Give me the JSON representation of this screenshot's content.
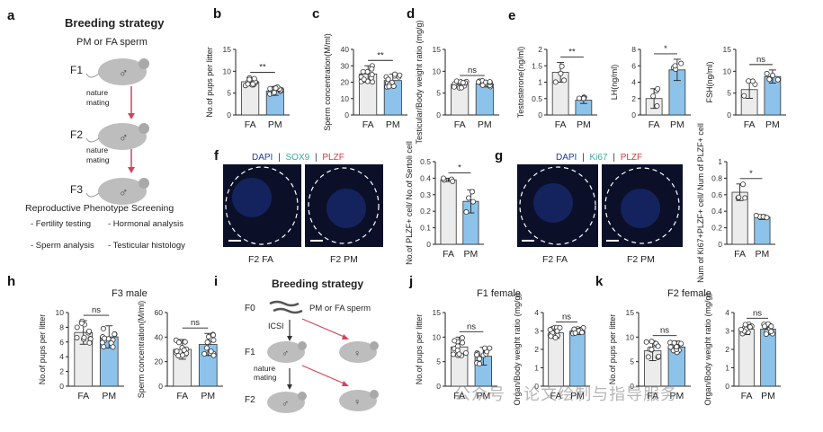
{
  "colors": {
    "fa_bar": "#ececec",
    "pm_bar": "#8dc3ea",
    "pm_dark": "#4b92cf",
    "arrow": "#d1455b",
    "mouse": "#bdbdbd",
    "dapi": "#1f3a9e",
    "sox9": "#3aa99f",
    "ki67": "#3aa99f",
    "plzf": "#d23b3b",
    "tissue_bg": "#0b1028"
  },
  "panel_a": {
    "letter": "a",
    "title": "Breeding strategy",
    "subtitle": "PM or FA sperm",
    "generations": [
      "F1",
      "F2",
      "F3"
    ],
    "arrow_label_1": "nature",
    "arrow_label_2": "mating",
    "screen_title": "Reproductive Phenotype Screening",
    "items": [
      "- Fertility testing",
      "- Hormonal analysis",
      "- Sperm analysis",
      "- Testicular histology"
    ],
    "mouse_symbol": "♂"
  },
  "panel_i": {
    "letter": "i",
    "title": "Breeding strategy",
    "gens": [
      "F0",
      "F1",
      "F2"
    ],
    "sperm_label": "PM or FA sperm",
    "icsi_label": "ICSI",
    "mating_1": "nature",
    "mating_2": "mating",
    "female_symbol": "♀",
    "male_symbol": "♂"
  },
  "panel_f": {
    "letter": "f",
    "stain_1": "DAPI",
    "stain_2": "SOX9",
    "stain_3": "PLZF",
    "sep": "|",
    "img_labels": [
      "F2 FA",
      "F2 PM"
    ]
  },
  "panel_g": {
    "letter": "g",
    "stain_1": "DAPI",
    "stain_2": "Ki67",
    "stain_3": "PLZF",
    "sep": "|",
    "img_labels": [
      "F2 FA",
      "F2 PM"
    ]
  },
  "extra_labels": {
    "e": "e",
    "h": "h",
    "j": "j",
    "k": "k",
    "h_title": "F3 male",
    "j_title": "F1 female",
    "k_title": "F2 female"
  },
  "watermark": "公众号 · 论文绘制与指导服务",
  "chart_data": [
    {
      "id": "b",
      "letter": "b",
      "type": "bar",
      "categories": [
        "FA",
        "PM"
      ],
      "ylabel": "No.of pups per litter",
      "ylim": [
        0,
        15
      ],
      "yticks": [
        0,
        5,
        10,
        15
      ],
      "values": [
        7.6,
        5.5
      ],
      "sig": "**",
      "err": [
        0.9,
        1.0
      ]
    },
    {
      "id": "c",
      "letter": "c",
      "type": "bar",
      "categories": [
        "FA",
        "PM"
      ],
      "ylabel": "Sperm concentration(M/ml)",
      "ylim": [
        0,
        40
      ],
      "yticks": [
        0,
        10,
        20,
        30,
        40
      ],
      "values": [
        25,
        21
      ],
      "sig": "**",
      "err": [
        5,
        4
      ]
    },
    {
      "id": "d",
      "letter": "d",
      "type": "bar",
      "categories": [
        "FA",
        "PM"
      ],
      "ylabel": "Testicular/Body weight ratio (mg/g)",
      "ylim": [
        0,
        15
      ],
      "yticks": [
        0,
        5,
        10,
        15
      ],
      "values": [
        7.0,
        7.1
      ],
      "sig": "ns",
      "err": [
        0.8,
        0.7
      ]
    },
    {
      "id": "e1",
      "letter": "e",
      "type": "bar",
      "categories": [
        "FA",
        "PM"
      ],
      "ylabel": "Testosterone(ng/ml)",
      "ylim": [
        0,
        2.0
      ],
      "yticks": [
        0,
        0.5,
        1.0,
        1.5,
        2.0
      ],
      "values": [
        1.3,
        0.45
      ],
      "sig": "**",
      "err": [
        0.3,
        0.1
      ]
    },
    {
      "id": "e2",
      "type": "bar",
      "categories": [
        "FA",
        "PM"
      ],
      "ylabel": "LH(ng/ml)",
      "ylim": [
        0,
        8
      ],
      "yticks": [
        0,
        2,
        4,
        6,
        8
      ],
      "values": [
        2.0,
        5.5
      ],
      "sig": "*",
      "err": [
        1.2,
        1.3
      ]
    },
    {
      "id": "e3",
      "type": "bar",
      "categories": [
        "FA",
        "PM"
      ],
      "ylabel": "FSH(ng/ml)",
      "ylim": [
        0,
        15
      ],
      "yticks": [
        0,
        5,
        10,
        15
      ],
      "values": [
        5.8,
        8.8
      ],
      "sig": "ns",
      "err": [
        2.0,
        1.5
      ]
    },
    {
      "id": "f",
      "type": "bar",
      "categories": [
        "FA",
        "PM"
      ],
      "ylabel": "No.of PLZF+ cell/ No.of Sertoli cell",
      "ylim": [
        0,
        0.5
      ],
      "yticks": [
        0,
        0.1,
        0.2,
        0.3,
        0.4,
        0.5
      ],
      "values": [
        0.39,
        0.26
      ],
      "sig": "*",
      "err": [
        0.01,
        0.07
      ]
    },
    {
      "id": "g",
      "type": "bar",
      "categories": [
        "FA",
        "PM"
      ],
      "ylabel": "Num of Ki67+PLZF+ cell/ Num of PLZF+ cell",
      "ylim": [
        0,
        1.0
      ],
      "yticks": [
        0,
        0.2,
        0.4,
        0.6,
        0.8,
        1.0
      ],
      "values": [
        0.63,
        0.33
      ],
      "sig": "*",
      "err": [
        0.1,
        0.03
      ]
    },
    {
      "id": "h1",
      "letter": "h",
      "type": "bar",
      "categories": [
        "FA",
        "PM"
      ],
      "ylabel": "No.of pups per litter",
      "ylim": [
        0,
        10
      ],
      "yticks": [
        0,
        2,
        4,
        6,
        8,
        10
      ],
      "values": [
        7.3,
        6.7
      ],
      "sig": "ns",
      "err": [
        1.6,
        1.5
      ]
    },
    {
      "id": "h2",
      "type": "bar",
      "categories": [
        "FA",
        "PM"
      ],
      "ylabel": "Sperm concentration(M/ml)",
      "ylim": [
        0,
        60
      ],
      "yticks": [
        0,
        20,
        40,
        60
      ],
      "values": [
        30,
        34
      ],
      "sig": "ns",
      "err": [
        8,
        9
      ]
    },
    {
      "id": "j1",
      "letter": "j",
      "type": "bar",
      "categories": [
        "FA",
        "PM"
      ],
      "ylabel": "No.of pups per litter",
      "ylim": [
        0,
        15
      ],
      "yticks": [
        0,
        5,
        10,
        15
      ],
      "values": [
        8.0,
        6.1
      ],
      "sig": "ns",
      "err": [
        2.0,
        1.8
      ]
    },
    {
      "id": "j2",
      "type": "bar",
      "categories": [
        "FA",
        "PM"
      ],
      "ylabel": "Organ/Body weight ratio (mg/g)",
      "ylim": [
        0,
        4
      ],
      "yticks": [
        0,
        1,
        2,
        3,
        4
      ],
      "values": [
        2.9,
        3.0
      ],
      "sig": "ns",
      "err": [
        0.3,
        0.2
      ]
    },
    {
      "id": "k1",
      "letter": "k",
      "type": "bar",
      "categories": [
        "FA",
        "PM"
      ],
      "ylabel": "No.of pups per litter",
      "ylim": [
        0,
        15
      ],
      "yticks": [
        0,
        5,
        10,
        15
      ],
      "values": [
        7.2,
        8.0
      ],
      "sig": "ns",
      "err": [
        2.0,
        1.2
      ]
    },
    {
      "id": "k2",
      "type": "bar",
      "categories": [
        "FA",
        "PM"
      ],
      "ylabel": "Organ/Body weight ratio (mg/g)",
      "ylim": [
        0,
        4
      ],
      "yticks": [
        0,
        1,
        2,
        3,
        4
      ],
      "values": [
        3.1,
        3.1
      ],
      "sig": "ns",
      "err": [
        0.3,
        0.3
      ]
    }
  ]
}
